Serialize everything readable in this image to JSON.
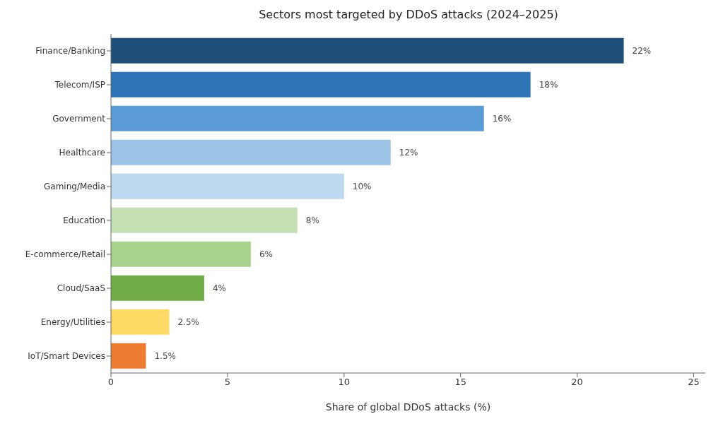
{
  "chart_data": {
    "type": "bar",
    "orientation": "horizontal",
    "title": "Sectors most targeted by DDoS attacks (2024–2025)",
    "xlabel": "Share of global DDoS attacks (%)",
    "categories": [
      "Finance/Banking",
      "Telecom/ISP",
      "Government",
      "Healthcare",
      "Gaming/Media",
      "Education",
      "E-commerce/Retail",
      "Cloud/SaaS",
      "Energy/Utilities",
      "IoT/Smart Devices"
    ],
    "values": [
      22,
      18,
      16,
      12,
      10,
      8,
      6,
      4,
      2.5,
      1.5
    ],
    "colors": [
      "#1f4e79",
      "#2e75b6",
      "#5b9bd5",
      "#9dc3e6",
      "#bdd7ee",
      "#c5e0b4",
      "#a9d18e",
      "#70ad47",
      "#ffd966",
      "#ed7d31"
    ],
    "value_labels": [
      "22%",
      "18%",
      "16%",
      "12%",
      "10%",
      "8%",
      "6%",
      "4%",
      "2.5%",
      "1.5%"
    ],
    "xlim": [
      0,
      25.5
    ],
    "xticks": [
      0,
      5,
      10,
      15,
      20,
      25
    ],
    "grid": false,
    "legend": false
  }
}
